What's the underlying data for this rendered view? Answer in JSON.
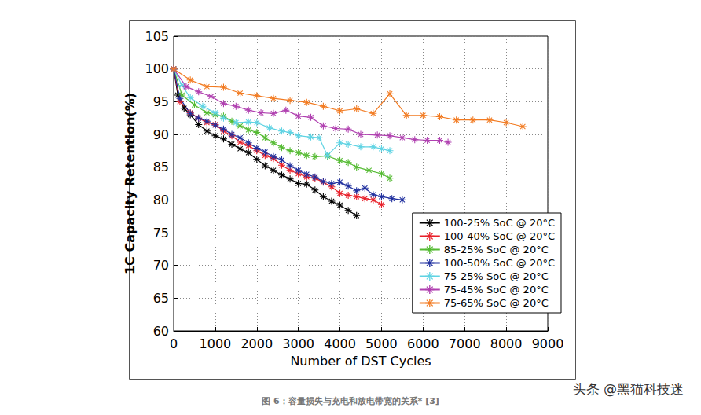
{
  "chart_data": {
    "type": "line",
    "xlabel": "Number of DST Cycles",
    "ylabel": "1C Capacity Retention(%)",
    "xlim": [
      0,
      9000
    ],
    "xticks": [
      0,
      1000,
      2000,
      3000,
      4000,
      5000,
      6000,
      7000,
      8000,
      9000
    ],
    "ylim": [
      60,
      105
    ],
    "yticks": [
      60,
      65,
      70,
      75,
      80,
      85,
      90,
      95,
      100,
      105
    ],
    "grid": true,
    "legend": "lower right",
    "marker": "asterisk",
    "annotations": [
      "图 6：容量损失与充电和放电带宽的关系* [3]",
      "头条 @黑猫科技迷"
    ],
    "series": [
      {
        "name": "100-25% SoC @ 20°C",
        "color": "#000000",
        "x": [
          0,
          100,
          250,
          400,
          600,
          800,
          1000,
          1200,
          1400,
          1600,
          1800,
          2000,
          2200,
          2400,
          2600,
          2800,
          3000,
          3200,
          3400,
          3600,
          3800,
          4000,
          4200,
          4400
        ],
        "values": [
          100,
          96,
          94,
          93,
          91.5,
          90.5,
          89.8,
          89.3,
          88.5,
          87.8,
          87.2,
          86.2,
          85.2,
          84.5,
          83.8,
          83.2,
          82.5,
          82.4,
          81.5,
          80.5,
          79.8,
          79.2,
          78.4,
          77.6
        ]
      },
      {
        "name": "100-40% SoC @ 20°C",
        "color": "#e8202a",
        "x": [
          0,
          150,
          400,
          600,
          800,
          1000,
          1200,
          1400,
          1600,
          1800,
          2000,
          2200,
          2400,
          2600,
          2800,
          3000,
          3200,
          3400,
          3600,
          3800,
          4000,
          4200,
          4400,
          4600,
          4800,
          5000
        ],
        "values": [
          100,
          95,
          93.3,
          92.5,
          91.8,
          91.5,
          90.5,
          89.8,
          88.8,
          88.3,
          87.5,
          86.8,
          86.3,
          85.3,
          84.5,
          84,
          83.5,
          83.3,
          82.7,
          82,
          81,
          80.7,
          80.5,
          80.2,
          80,
          79.3
        ]
      },
      {
        "name": "85-25% SoC @ 20°C",
        "color": "#55bb33",
        "x": [
          0,
          200,
          500,
          800,
          1000,
          1200,
          1400,
          1600,
          1800,
          2000,
          2200,
          2400,
          2600,
          2800,
          3000,
          3200,
          3400,
          3700,
          4000,
          4200,
          4400,
          4700,
          5000,
          5200
        ],
        "values": [
          100,
          96,
          94.5,
          93.3,
          93,
          92.8,
          92,
          91.3,
          90.7,
          90.3,
          89.5,
          88.7,
          88,
          87.5,
          87.2,
          86.8,
          86.6,
          86.7,
          86,
          85.7,
          85,
          84.5,
          84,
          83.3
        ]
      },
      {
        "name": "100-50% SoC @ 20°C",
        "color": "#1f2f9e",
        "x": [
          0,
          150,
          400,
          600,
          800,
          1000,
          1200,
          1400,
          1600,
          1800,
          2000,
          2200,
          2400,
          2600,
          2800,
          3000,
          3200,
          3400,
          3600,
          3800,
          4000,
          4200,
          4400,
          4600,
          4800,
          5000,
          5250,
          5500
        ],
        "values": [
          100,
          95.5,
          93.2,
          92.5,
          92,
          91.4,
          90.8,
          90,
          89.5,
          88.7,
          87.9,
          87.3,
          86.6,
          86.1,
          85.2,
          84.5,
          83.9,
          83.5,
          82.8,
          82.5,
          82.7,
          82.1,
          81.4,
          81.8,
          80.8,
          80.5,
          80.2,
          80
        ]
      },
      {
        "name": "75-25% SoC @ 20°C",
        "color": "#5fd3e3",
        "x": [
          0,
          200,
          400,
          700,
          1000,
          1200,
          1500,
          1800,
          2000,
          2300,
          2600,
          2800,
          3000,
          3300,
          3500,
          3700,
          4000,
          4200,
          4500,
          4800,
          5000,
          5200
        ],
        "values": [
          100,
          97.5,
          95.6,
          94.3,
          93.3,
          92.5,
          91.8,
          91.9,
          91.8,
          91,
          90.5,
          90.3,
          89.8,
          89.6,
          89.5,
          86.8,
          88.7,
          88.5,
          88.1,
          88.1,
          87.8,
          87.5
        ]
      },
      {
        "name": "75-45% SoC @ 20°C",
        "color": "#b040b0",
        "x": [
          0,
          300,
          600,
          900,
          1200,
          1500,
          1800,
          2100,
          2400,
          2700,
          3000,
          3300,
          3600,
          3900,
          4200,
          4500,
          4900,
          5200,
          5500,
          5800,
          6100,
          6400,
          6600
        ],
        "values": [
          100,
          97.3,
          96.5,
          95.8,
          94.7,
          94.3,
          93.7,
          93.3,
          93.2,
          93.7,
          92.8,
          92.6,
          91.3,
          90.9,
          90.8,
          90,
          89.9,
          89.8,
          89.5,
          89.2,
          89.1,
          89.1,
          88.8
        ]
      },
      {
        "name": "75-65% SoC @ 20°C",
        "color": "#f27b22",
        "x": [
          0,
          400,
          800,
          1200,
          1600,
          2000,
          2400,
          2800,
          3200,
          3600,
          4000,
          4400,
          4800,
          5200,
          5600,
          6000,
          6400,
          6800,
          7200,
          7600,
          8000,
          8400
        ],
        "values": [
          100,
          98.3,
          97.3,
          97.2,
          96.3,
          95.9,
          95.5,
          95.2,
          94.9,
          94.3,
          93.6,
          93.9,
          93.2,
          96.2,
          92.9,
          92.9,
          92.7,
          92.2,
          92.2,
          92.2,
          91.8,
          91.2
        ]
      }
    ]
  }
}
